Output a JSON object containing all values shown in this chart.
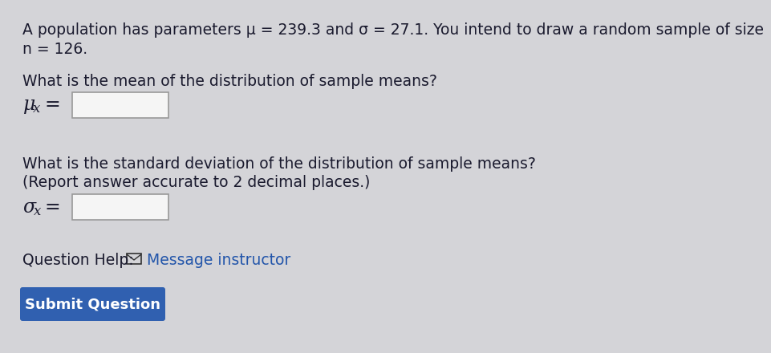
{
  "bg_color": "#d4d4d8",
  "text_color": "#1a1a2e",
  "line1": "A population has parameters μ = 239.3 and σ = 27.1. You intend to draw a random sample of size",
  "line2": "n = 126.",
  "q1_text": "What is the mean of the distribution of sample means?",
  "q2_text1": "What is the standard deviation of the distribution of sample means?",
  "q2_text2": "(Report answer accurate to 2 decimal places.)",
  "help_text": "Question Help:",
  "help_link": "Message instructor",
  "btn_text": "Submit Question",
  "btn_color": "#3060b0",
  "btn_text_color": "#ffffff",
  "box_color": "#f5f5f5",
  "box_border": "#999999",
  "font_size_body": 13.5,
  "font_size_label": 14,
  "font_size_btn": 13,
  "link_color": "#2255aa",
  "help_icon_color": "#333333"
}
